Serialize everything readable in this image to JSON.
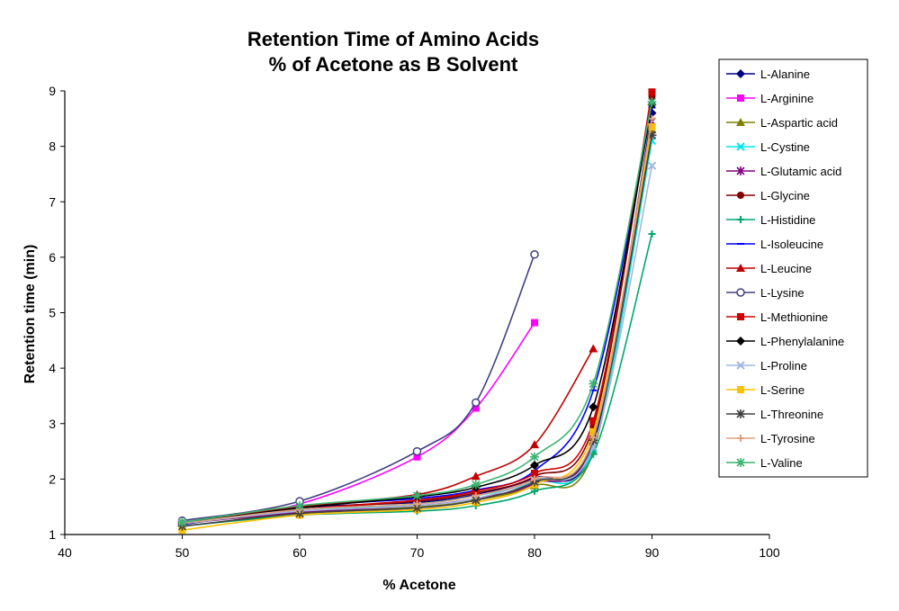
{
  "chart_data": {
    "type": "line",
    "title": "Retention Time of Amino Acids",
    "subtitle": "% of Acetone as B Solvent",
    "xlabel": "% Acetone",
    "ylabel": "Retention time (min)",
    "xlim": [
      40,
      100
    ],
    "ylim": [
      1,
      9
    ],
    "xticks": [
      40,
      50,
      60,
      70,
      80,
      90,
      100
    ],
    "yticks": [
      1,
      2,
      3,
      4,
      5,
      6,
      7,
      8,
      9
    ],
    "grid": false,
    "legend_position": "right",
    "series": [
      {
        "name": "L-Alanine",
        "color": "#000080",
        "marker": "diamond",
        "points": [
          [
            50,
            1.18
          ],
          [
            60,
            1.48
          ],
          [
            70,
            1.58
          ],
          [
            75,
            1.72
          ],
          [
            80,
            2.02
          ],
          [
            85,
            2.62
          ],
          [
            90,
            8.6
          ]
        ]
      },
      {
        "name": "L-Arginine",
        "color": "#ff00ff",
        "marker": "square",
        "points": [
          [
            50,
            1.2
          ],
          [
            60,
            1.55
          ],
          [
            70,
            2.4
          ],
          [
            75,
            3.28
          ],
          [
            80,
            4.82
          ]
        ]
      },
      {
        "name": "L-Aspartic acid",
        "color": "#808000",
        "marker": "triangle",
        "points": [
          [
            50,
            1.22
          ],
          [
            60,
            1.38
          ],
          [
            70,
            1.5
          ],
          [
            75,
            1.62
          ],
          [
            80,
            1.88
          ],
          [
            85,
            2.5
          ],
          [
            90,
            8.3
          ]
        ]
      },
      {
        "name": "L-Cystine",
        "color": "#00e5ee",
        "marker": "x",
        "points": [
          [
            50,
            1.2
          ],
          [
            60,
            1.42
          ],
          [
            70,
            1.55
          ],
          [
            75,
            1.7
          ],
          [
            80,
            1.95
          ],
          [
            85,
            2.55
          ],
          [
            90,
            8.1
          ]
        ]
      },
      {
        "name": "L-Glutamic acid",
        "color": "#800080",
        "marker": "asterisk",
        "points": [
          [
            50,
            1.2
          ],
          [
            60,
            1.4
          ],
          [
            70,
            1.52
          ],
          [
            75,
            1.65
          ],
          [
            80,
            1.92
          ],
          [
            85,
            2.7
          ],
          [
            90,
            8.45
          ]
        ]
      },
      {
        "name": "L-Glycine",
        "color": "#800000",
        "marker": "circle",
        "points": [
          [
            50,
            1.2
          ],
          [
            60,
            1.45
          ],
          [
            70,
            1.6
          ],
          [
            75,
            1.75
          ],
          [
            80,
            2.05
          ],
          [
            85,
            2.95
          ],
          [
            90,
            8.9
          ]
        ]
      },
      {
        "name": "L-Histidine",
        "color": "#00a86b",
        "marker": "plus",
        "points": [
          [
            50,
            1.15
          ],
          [
            60,
            1.35
          ],
          [
            70,
            1.42
          ],
          [
            75,
            1.52
          ],
          [
            80,
            1.78
          ],
          [
            85,
            2.45
          ],
          [
            90,
            6.42
          ]
        ]
      },
      {
        "name": "L-Isoleucine",
        "color": "#0000ff",
        "marker": "dash",
        "points": [
          [
            50,
            1.18
          ],
          [
            60,
            1.5
          ],
          [
            70,
            1.65
          ],
          [
            75,
            1.8
          ],
          [
            80,
            2.15
          ],
          [
            85,
            3.6
          ],
          [
            90,
            8.7
          ]
        ]
      },
      {
        "name": "L-Leucine",
        "color": "#c00000",
        "marker": "triangle",
        "points": [
          [
            50,
            1.22
          ],
          [
            60,
            1.5
          ],
          [
            70,
            1.72
          ],
          [
            75,
            2.05
          ],
          [
            80,
            2.62
          ],
          [
            85,
            4.35
          ]
        ]
      },
      {
        "name": "L-Lysine",
        "color": "#404080",
        "marker": "circle-open",
        "points": [
          [
            50,
            1.25
          ],
          [
            60,
            1.6
          ],
          [
            70,
            2.5
          ],
          [
            75,
            3.38
          ],
          [
            80,
            6.05
          ]
        ]
      },
      {
        "name": "L-Methionine",
        "color": "#d00000",
        "marker": "square",
        "points": [
          [
            50,
            1.2
          ],
          [
            60,
            1.45
          ],
          [
            70,
            1.62
          ],
          [
            75,
            1.78
          ],
          [
            80,
            2.1
          ],
          [
            85,
            3.05
          ],
          [
            90,
            8.98
          ]
        ]
      },
      {
        "name": "L-Phenylalanine",
        "color": "#000000",
        "marker": "diamond",
        "points": [
          [
            50,
            1.2
          ],
          [
            60,
            1.48
          ],
          [
            70,
            1.68
          ],
          [
            75,
            1.85
          ],
          [
            80,
            2.25
          ],
          [
            85,
            3.3
          ],
          [
            90,
            8.75
          ]
        ]
      },
      {
        "name": "L-Proline",
        "color": "#a0b8e0",
        "marker": "x",
        "points": [
          [
            50,
            1.2
          ],
          [
            60,
            1.42
          ],
          [
            70,
            1.52
          ],
          [
            75,
            1.65
          ],
          [
            80,
            1.98
          ],
          [
            85,
            2.58
          ],
          [
            90,
            7.65
          ]
        ]
      },
      {
        "name": "L-Serine",
        "color": "#ffc000",
        "marker": "square",
        "points": [
          [
            50,
            1.08
          ],
          [
            60,
            1.35
          ],
          [
            70,
            1.45
          ],
          [
            75,
            1.58
          ],
          [
            80,
            1.9
          ],
          [
            85,
            2.85
          ],
          [
            90,
            8.35
          ]
        ]
      },
      {
        "name": "L-Threonine",
        "color": "#404040",
        "marker": "star",
        "points": [
          [
            50,
            1.15
          ],
          [
            60,
            1.38
          ],
          [
            70,
            1.48
          ],
          [
            75,
            1.62
          ],
          [
            80,
            1.95
          ],
          [
            85,
            2.7
          ],
          [
            90,
            8.2
          ]
        ]
      },
      {
        "name": "L-Tyrosine",
        "color": "#e0a080",
        "marker": "plus",
        "points": [
          [
            50,
            1.2
          ],
          [
            60,
            1.45
          ],
          [
            70,
            1.55
          ],
          [
            75,
            1.7
          ],
          [
            80,
            2.0
          ],
          [
            85,
            2.75
          ],
          [
            90,
            8.5
          ]
        ]
      },
      {
        "name": "L-Valine",
        "color": "#3cb371",
        "marker": "star",
        "points": [
          [
            50,
            1.22
          ],
          [
            60,
            1.52
          ],
          [
            70,
            1.7
          ],
          [
            75,
            1.9
          ],
          [
            80,
            2.4
          ],
          [
            85,
            3.72
          ],
          [
            90,
            8.8
          ]
        ]
      }
    ]
  }
}
